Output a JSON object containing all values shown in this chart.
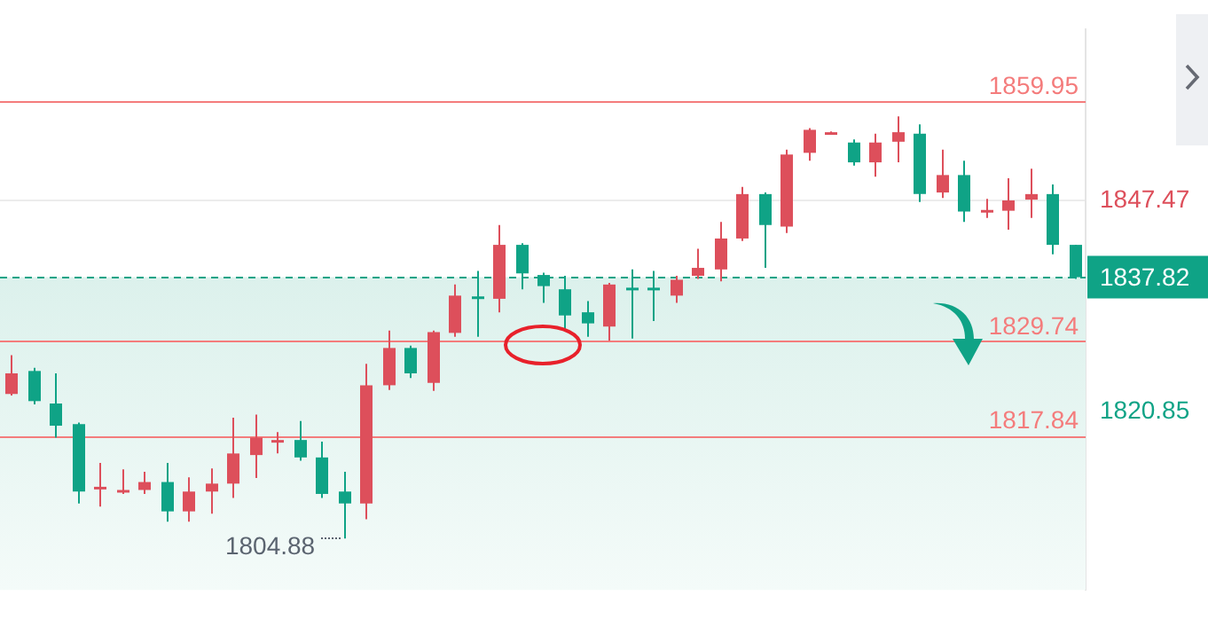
{
  "chart_data": {
    "type": "candlestick",
    "categories": [
      null,
      null,
      null,
      null,
      null,
      null,
      null,
      null,
      null,
      null,
      null,
      null,
      null,
      null,
      null,
      null,
      null,
      null,
      null,
      null,
      null,
      null,
      null,
      null,
      null,
      null,
      null,
      null,
      null,
      null,
      null,
      null,
      null,
      null,
      null,
      null,
      null,
      null,
      null,
      null,
      null,
      null,
      null,
      null,
      null,
      null,
      null,
      null,
      null
    ],
    "ohlc": [
      [
        1823.1,
        1828.0,
        1822.9,
        1825.7
      ],
      [
        1826.0,
        1826.4,
        1821.8,
        1822.2
      ],
      [
        1821.9,
        1825.7,
        1817.6,
        1819.1
      ],
      [
        1819.3,
        1819.5,
        1809.3,
        1810.8
      ],
      [
        1811.2,
        1814.4,
        1808.9,
        1811.4
      ],
      [
        1810.8,
        1813.6,
        1810.5,
        1811.0
      ],
      [
        1811.0,
        1813.3,
        1810.5,
        1812.0
      ],
      [
        1812.0,
        1814.4,
        1807.0,
        1808.3
      ],
      [
        1808.3,
        1812.6,
        1807.0,
        1810.8
      ],
      [
        1810.8,
        1813.7,
        1808.0,
        1811.8
      ],
      [
        1811.8,
        1820.1,
        1810.0,
        1815.6
      ],
      [
        1815.4,
        1820.5,
        1812.5,
        1817.6
      ],
      [
        1817.1,
        1818.3,
        1815.6,
        1817.3
      ],
      [
        1817.3,
        1819.7,
        1814.7,
        1815.1
      ],
      [
        1815.1,
        1817.1,
        1810.0,
        1810.5
      ],
      [
        1810.8,
        1813.3,
        1804.88,
        1809.3
      ],
      [
        1809.3,
        1826.9,
        1807.3,
        1824.2
      ],
      [
        1824.2,
        1831.1,
        1823.6,
        1828.9
      ],
      [
        1828.9,
        1829.2,
        1825.1,
        1825.7
      ],
      [
        1824.5,
        1831.1,
        1823.5,
        1830.9
      ],
      [
        1830.8,
        1836.9,
        1830.3,
        1835.5
      ],
      [
        1835.4,
        1838.6,
        1830.3,
        1835.1
      ],
      [
        1835.1,
        1844.4,
        1833.4,
        1841.9
      ],
      [
        1841.9,
        1842.1,
        1836.3,
        1838.3
      ],
      [
        1838.1,
        1838.4,
        1834.6,
        1836.7
      ],
      [
        1836.3,
        1838.0,
        1831.3,
        1833.0
      ],
      [
        1833.4,
        1834.8,
        1830.3,
        1832.0
      ],
      [
        1831.6,
        1837.1,
        1829.8,
        1836.9
      ],
      [
        1836.5,
        1838.8,
        1830.1,
        1836.3
      ],
      [
        1836.5,
        1838.6,
        1832.3,
        1836.3
      ],
      [
        1835.5,
        1838.0,
        1834.6,
        1837.5
      ],
      [
        1838.0,
        1841.4,
        1837.6,
        1839.0
      ],
      [
        1838.8,
        1844.8,
        1837.3,
        1842.7
      ],
      [
        1842.7,
        1849.2,
        1842.4,
        1848.3
      ],
      [
        1848.3,
        1848.5,
        1839.0,
        1844.4
      ],
      [
        1844.2,
        1853.9,
        1843.4,
        1853.3
      ],
      [
        1853.5,
        1856.6,
        1852.5,
        1856.4
      ],
      [
        1856.0,
        1856.2,
        1855.9,
        1856.1
      ],
      [
        1854.8,
        1855.2,
        1851.9,
        1852.3
      ],
      [
        1852.3,
        1855.9,
        1850.5,
        1854.8
      ],
      [
        1854.9,
        1858.1,
        1852.3,
        1856.1
      ],
      [
        1855.9,
        1857.1,
        1847.3,
        1848.3
      ],
      [
        1848.5,
        1853.9,
        1847.8,
        1850.7
      ],
      [
        1850.7,
        1852.5,
        1844.8,
        1846.1
      ],
      [
        1846.2,
        1847.7,
        1845.3,
        1846.3
      ],
      [
        1846.2,
        1850.3,
        1843.8,
        1847.5
      ],
      [
        1847.6,
        1851.5,
        1845.3,
        1848.3
      ],
      [
        1848.3,
        1849.5,
        1840.7,
        1841.9
      ],
      [
        1841.9,
        1841.9,
        1837.6,
        1837.82
      ]
    ],
    "colors": [
      "#dd4f5b",
      "#0fa386",
      "#0fa386",
      "#0fa386",
      "#dd4f5b",
      "#dd4f5b",
      "#dd4f5b",
      "#0fa386",
      "#dd4f5b",
      "#dd4f5b",
      "#dd4f5b",
      "#dd4f5b",
      "#dd4f5b",
      "#0fa386",
      "#0fa386",
      "#0fa386",
      "#dd4f5b",
      "#dd4f5b",
      "#0fa386",
      "#dd4f5b",
      "#dd4f5b",
      "#0fa386",
      "#dd4f5b",
      "#0fa386",
      "#0fa386",
      "#0fa386",
      "#0fa386",
      "#dd4f5b",
      "#0fa386",
      "#0fa386",
      "#dd4f5b",
      "#dd4f5b",
      "#dd4f5b",
      "#dd4f5b",
      "#0fa386",
      "#dd4f5b",
      "#dd4f5b",
      "#dd4f5b",
      "#0fa386",
      "#dd4f5b",
      "#dd4f5b",
      "#0fa386",
      "#dd4f5b",
      "#0fa386",
      "#dd4f5b",
      "#dd4f5b",
      "#dd4f5b",
      "#0fa386",
      "#0fa386"
    ],
    "ylim": [
      1798.4,
      1869.1
    ],
    "yticks": [
      1847.47,
      1820.85
    ],
    "grid": "y",
    "ref_lines": [
      {
        "axis": "y",
        "value": 1859.95,
        "label": "1859.95",
        "color": "#f47c7c"
      },
      {
        "axis": "y",
        "value": 1829.74,
        "label": "1829.74",
        "color": "#f47c7c"
      },
      {
        "axis": "y",
        "value": 1817.84,
        "label": "1817.84",
        "color": "#f47c7c"
      },
      {
        "axis": "y",
        "value": 1837.82,
        "label": "1837.82",
        "color": "#0fa386",
        "line_style": "dashed"
      }
    ],
    "bands": [
      {
        "axis": "y",
        "from": 1798.4,
        "to": 1837.82,
        "color": "#dcf1ec"
      }
    ],
    "annotations": [
      "1804.88"
    ]
  }
}
